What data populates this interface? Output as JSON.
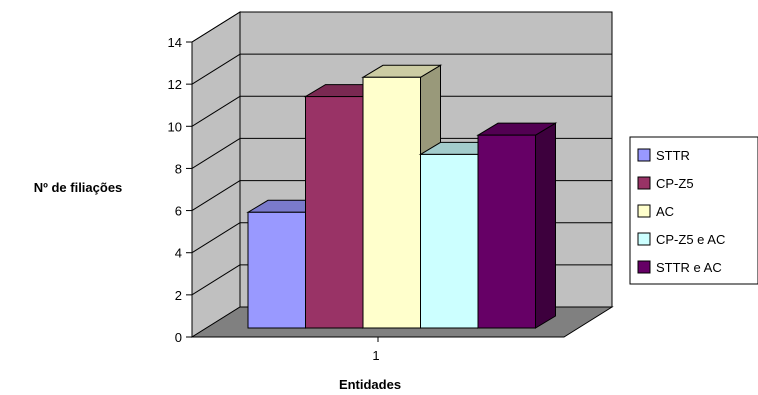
{
  "chart_data": {
    "type": "bar",
    "style": "3d-clustered",
    "categories": [
      "1"
    ],
    "series": [
      {
        "name": "STTR",
        "values": [
          6
        ],
        "color": "#9999ff"
      },
      {
        "name": "CP-Z5",
        "values": [
          12
        ],
        "color": "#993366"
      },
      {
        "name": "AC",
        "values": [
          13
        ],
        "color": "#ffffcc"
      },
      {
        "name": "CP-Z5 e AC",
        "values": [
          9
        ],
        "color": "#ccffff"
      },
      {
        "name": "STTR e AC",
        "values": [
          10
        ],
        "color": "#660066"
      }
    ],
    "title": "",
    "xlabel": "Entidades",
    "ylabel": "Nº de filiações",
    "ylim": [
      0,
      14
    ],
    "yticks": [
      0,
      2,
      4,
      6,
      8,
      10,
      12,
      14
    ],
    "grid": true,
    "legend_position": "right",
    "wall_color": "#c0c0c0",
    "floor_color": "#808080"
  }
}
